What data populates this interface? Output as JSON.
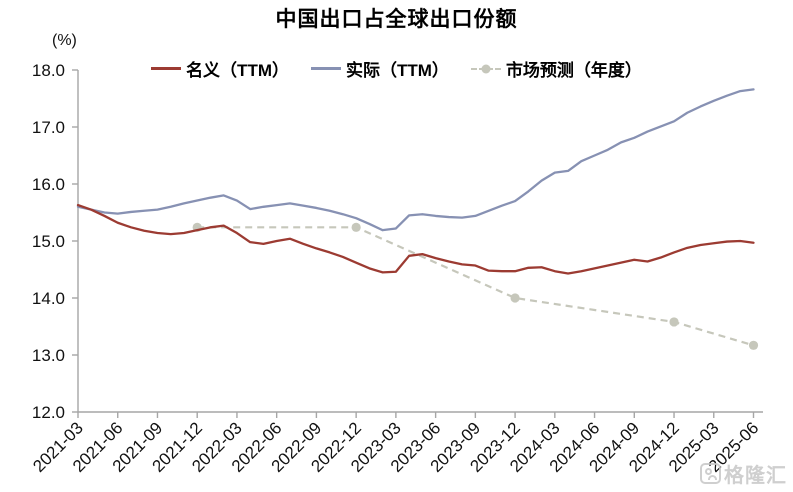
{
  "title": "中国出口占全球出口份额",
  "unit_label": "(%)",
  "watermark": {
    "text": "格隆汇"
  },
  "colors": {
    "nominal_line": "#9C3B32",
    "real_line": "#8791B3",
    "forecast_line": "#C6C7BB",
    "axis": "#A6A6A6",
    "text": "#111111"
  },
  "chart_data": {
    "type": "line",
    "title": "中国出口占全球出口份额",
    "xlabel": "",
    "ylabel": "(%)",
    "ylim": [
      12.0,
      18.0
    ],
    "ytick_step": 1.0,
    "grid": false,
    "legend_position": "top-center",
    "axis_color": "#A6A6A6",
    "x_tick_labels": [
      "2021-03",
      "2021-06",
      "2021-09",
      "2021-12",
      "2022-03",
      "2022-06",
      "2022-09",
      "2022-12",
      "2023-03",
      "2023-06",
      "2023-09",
      "2023-12",
      "2024-03",
      "2024-06",
      "2024-09",
      "2024-12",
      "2025-03",
      "2025-06"
    ],
    "x": [
      "2021-03",
      "2021-04",
      "2021-05",
      "2021-06",
      "2021-07",
      "2021-08",
      "2021-09",
      "2021-10",
      "2021-11",
      "2021-12",
      "2022-01",
      "2022-02",
      "2022-03",
      "2022-04",
      "2022-05",
      "2022-06",
      "2022-07",
      "2022-08",
      "2022-09",
      "2022-10",
      "2022-11",
      "2022-12",
      "2023-01",
      "2023-02",
      "2023-03",
      "2023-04",
      "2023-05",
      "2023-06",
      "2023-07",
      "2023-08",
      "2023-09",
      "2023-10",
      "2023-11",
      "2023-12",
      "2024-01",
      "2024-02",
      "2024-03",
      "2024-04",
      "2024-05",
      "2024-06",
      "2024-07",
      "2024-08",
      "2024-09",
      "2024-10",
      "2024-11",
      "2024-12",
      "2025-01",
      "2025-02",
      "2025-03",
      "2025-04",
      "2025-05",
      "2025-06"
    ],
    "series": [
      {
        "name": "名义（TTM）",
        "color": "#9C3B32",
        "style": "solid",
        "values": [
          15.63,
          15.55,
          15.44,
          15.32,
          15.24,
          15.18,
          15.14,
          15.12,
          15.14,
          15.19,
          15.24,
          15.27,
          15.14,
          14.98,
          14.95,
          15.0,
          15.04,
          14.95,
          14.87,
          14.8,
          14.72,
          14.62,
          14.52,
          14.45,
          14.46,
          14.74,
          14.77,
          14.7,
          14.64,
          14.59,
          14.57,
          14.48,
          14.47,
          14.47,
          14.53,
          14.54,
          14.47,
          14.43,
          14.47,
          14.52,
          14.57,
          14.62,
          14.67,
          14.64,
          14.71,
          14.8,
          14.88,
          14.93,
          14.96,
          14.99,
          15.0,
          14.97
        ]
      },
      {
        "name": "实际（TTM）",
        "color": "#8791B3",
        "style": "solid",
        "values": [
          15.6,
          15.55,
          15.5,
          15.48,
          15.51,
          15.53,
          15.55,
          15.6,
          15.66,
          15.71,
          15.76,
          15.8,
          15.71,
          15.56,
          15.6,
          15.63,
          15.66,
          15.62,
          15.58,
          15.53,
          15.47,
          15.4,
          15.3,
          15.19,
          15.22,
          15.45,
          15.47,
          15.44,
          15.42,
          15.41,
          15.44,
          15.53,
          15.62,
          15.7,
          15.87,
          16.06,
          16.2,
          16.23,
          16.4,
          16.5,
          16.6,
          16.73,
          16.81,
          16.92,
          17.01,
          17.1,
          17.25,
          17.36,
          17.46,
          17.55,
          17.63,
          17.66
        ]
      },
      {
        "name": "市场预测（年度）",
        "color": "#C6C7BB",
        "style": "dashed-with-markers",
        "points": {
          "x": [
            "2021-12",
            "2022-12",
            "2023-12",
            "2024-12",
            "2025-06"
          ],
          "values": [
            15.24,
            15.24,
            14.0,
            13.58,
            13.17
          ]
        }
      }
    ]
  }
}
